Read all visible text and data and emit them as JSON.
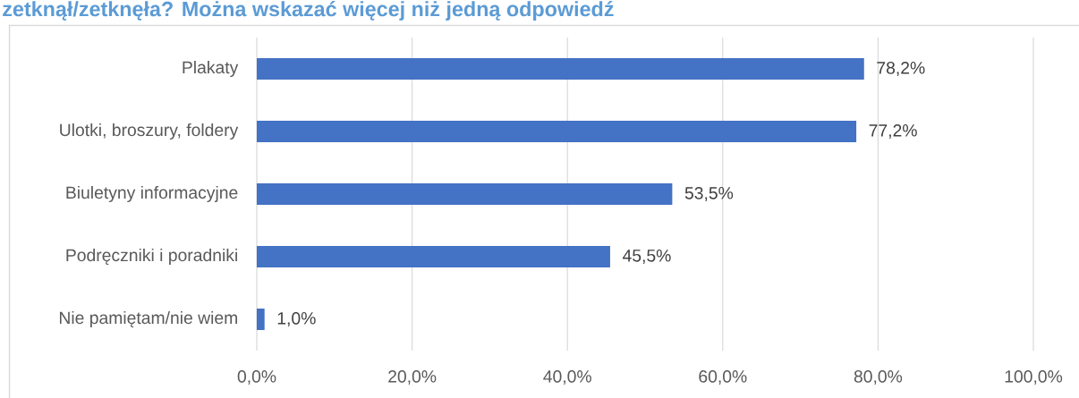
{
  "chart_data": {
    "type": "bar",
    "orientation": "horizontal",
    "title": "zetknął/zetknęła? Można wskazać więcej niż jedną odpowiedź",
    "categories": [
      "Plakaty",
      "Ulotki, broszury, foldery",
      "Biuletyny informacyjne",
      "Podręczniki i poradniki",
      "Nie pamiętam/nie wiem"
    ],
    "values": [
      78.2,
      77.2,
      53.5,
      45.5,
      1.0
    ],
    "color": "#4472c4",
    "value_labels": [
      "78,2%",
      "77,2%",
      "53,5%",
      "45,5%",
      "1,0%"
    ],
    "xlim": [
      0,
      100
    ],
    "xticks": [
      {
        "value": 0,
        "label": "0,0%"
      },
      {
        "value": 20,
        "label": "20,0%"
      },
      {
        "value": 40,
        "label": "40,0%"
      },
      {
        "value": 60,
        "label": "60,0%"
      },
      {
        "value": 80,
        "label": "80,0%"
      },
      {
        "value": 100,
        "label": "100,0%"
      }
    ],
    "grid": "x"
  }
}
